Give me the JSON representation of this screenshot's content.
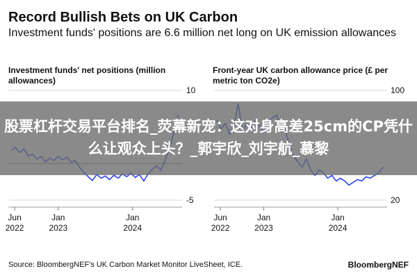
{
  "title": "Record Bullish Bets on UK Carbon",
  "subtitle": "Investment funds' positions are 6.6 million net long on UK emission allowances",
  "banner_text": "股票杠杆交易平台排名_荧幕新宠：这对身高差25cm的CP凭什么让观众上头？_郭宇欣_刘宇航_慕黎",
  "source": "Source: BloombergNEF's UK Carbon Market Monitor LiveSheet, ICE.",
  "brand": "BloombergNEF",
  "colors": {
    "line": "#2c43f5",
    "grid": "#d9d9d9",
    "zero_line": "#777777",
    "text": "#111111"
  },
  "chart_data": [
    {
      "type": "line",
      "title": "Investment funds' net positions (million allowances)",
      "y_axis_side": "right",
      "ylim": [
        -5,
        10
      ],
      "yticks": [
        10,
        -5
      ],
      "xlim": [
        "2022-05-01",
        "2024-08-31"
      ],
      "xticks": [
        {
          "date": "2022-06-01",
          "label": [
            "Jun",
            "2022"
          ]
        },
        {
          "date": "2023-01-01",
          "label": [
            "Jan",
            "2023"
          ]
        },
        {
          "date": "2024-01-01",
          "label": [
            "Jan",
            "2024"
          ]
        }
      ],
      "series": [
        {
          "points": [
            [
              "2022-05-15",
              1.8
            ],
            [
              "2022-06-05",
              2.2
            ],
            [
              "2022-06-26",
              1.5
            ],
            [
              "2022-07-17",
              2.0
            ],
            [
              "2022-08-07",
              1.0
            ],
            [
              "2022-08-28",
              1.3
            ],
            [
              "2022-09-18",
              0.6
            ],
            [
              "2022-10-09",
              1.0
            ],
            [
              "2022-10-30",
              0.2
            ],
            [
              "2022-11-20",
              0.8
            ],
            [
              "2022-12-11",
              0.4
            ],
            [
              "2023-01-01",
              1.0
            ],
            [
              "2023-01-22",
              0.5
            ],
            [
              "2023-02-12",
              0.9
            ],
            [
              "2023-03-05",
              0.2
            ],
            [
              "2023-03-26",
              0.4
            ],
            [
              "2023-04-16",
              -0.5
            ],
            [
              "2023-05-07",
              -1.2
            ],
            [
              "2023-05-28",
              -1.8
            ],
            [
              "2023-06-18",
              -2.3
            ],
            [
              "2023-07-09",
              -1.5
            ],
            [
              "2023-07-30",
              -2.0
            ],
            [
              "2023-08-20",
              -1.7
            ],
            [
              "2023-09-10",
              -2.2
            ],
            [
              "2023-10-01",
              -1.6
            ],
            [
              "2023-10-22",
              -2.0
            ],
            [
              "2023-11-12",
              -1.4
            ],
            [
              "2023-12-03",
              -1.8
            ],
            [
              "2023-12-24",
              -1.3
            ],
            [
              "2024-01-14",
              -1.9
            ],
            [
              "2024-02-04",
              -1.5
            ],
            [
              "2024-02-25",
              -2.4
            ],
            [
              "2024-03-17",
              -1.4
            ],
            [
              "2024-04-07",
              -0.8
            ],
            [
              "2024-04-28",
              -0.3
            ],
            [
              "2024-05-19",
              -0.9
            ],
            [
              "2024-06-09",
              0.5
            ],
            [
              "2024-06-30",
              2.0
            ],
            [
              "2024-07-21",
              4.2
            ],
            [
              "2024-08-11",
              6.6
            ]
          ]
        }
      ]
    },
    {
      "type": "line",
      "title": "Front-year UK carbon allowance price (£ per metric ton CO2e)",
      "y_axis_side": "right",
      "ylim": [
        20,
        100
      ],
      "yticks": [
        100,
        20
      ],
      "xlim": [
        "2022-05-01",
        "2024-08-31"
      ],
      "xticks": [
        {
          "date": "2022-06-01",
          "label": [
            "Jun",
            "2022"
          ]
        },
        {
          "date": "2023-01-01",
          "label": [
            "Jan",
            "2023"
          ]
        },
        {
          "date": "2024-01-01",
          "label": [
            "Jan",
            "2024"
          ]
        }
      ],
      "series": [
        {
          "points": [
            [
              "2022-05-15",
              78
            ],
            [
              "2022-06-05",
              72
            ],
            [
              "2022-06-26",
              76
            ],
            [
              "2022-07-17",
              68
            ],
            [
              "2022-08-07",
              74
            ],
            [
              "2022-08-28",
              90
            ],
            [
              "2022-09-18",
              70
            ],
            [
              "2022-10-09",
              76
            ],
            [
              "2022-10-30",
              72
            ],
            [
              "2022-11-20",
              78
            ],
            [
              "2022-12-11",
              74
            ],
            [
              "2023-01-01",
              70
            ],
            [
              "2023-01-22",
              76
            ],
            [
              "2023-02-12",
              80
            ],
            [
              "2023-03-05",
              82
            ],
            [
              "2023-03-26",
              75
            ],
            [
              "2023-04-16",
              72
            ],
            [
              "2023-05-07",
              60
            ],
            [
              "2023-05-28",
              52
            ],
            [
              "2023-06-18",
              48
            ],
            [
              "2023-07-09",
              44
            ],
            [
              "2023-07-30",
              50
            ],
            [
              "2023-08-20",
              42
            ],
            [
              "2023-09-10",
              38
            ],
            [
              "2023-10-01",
              42
            ],
            [
              "2023-10-22",
              40
            ],
            [
              "2023-11-12",
              36
            ],
            [
              "2023-12-03",
              38
            ],
            [
              "2023-12-24",
              34
            ],
            [
              "2024-01-14",
              36
            ],
            [
              "2024-02-04",
              34
            ],
            [
              "2024-02-25",
              31
            ],
            [
              "2024-03-17",
              33
            ],
            [
              "2024-04-07",
              35
            ],
            [
              "2024-04-28",
              34
            ],
            [
              "2024-05-19",
              37
            ],
            [
              "2024-06-09",
              36
            ],
            [
              "2024-06-30",
              38
            ],
            [
              "2024-07-21",
              40
            ],
            [
              "2024-08-11",
              44
            ]
          ]
        }
      ]
    }
  ]
}
